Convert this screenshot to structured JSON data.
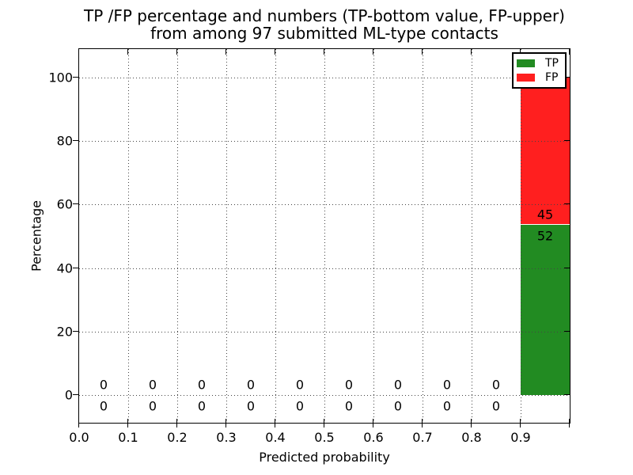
{
  "figure": {
    "title_line1": "TP /FP percentage and numbers (TP-bottom value, FP-upper)",
    "title_line2": "from among 97 submitted ML-type contacts",
    "xlabel": "Predicted probability",
    "ylabel": "Percentage",
    "background_color": "#ffffff"
  },
  "legend": {
    "position": "upper right",
    "items": [
      {
        "label": "TP",
        "color": "#228b22"
      },
      {
        "label": "FP",
        "color": "#ff1f1f"
      }
    ]
  },
  "chart_data": {
    "type": "bar",
    "stacked": true,
    "title": "TP /FP percentage and numbers (TP-bottom value, FP-upper) from among 97 submitted ML-type contacts",
    "xlabel": "Predicted probability",
    "ylabel": "Percentage",
    "total_contacts": 97,
    "bin_width": 0.1,
    "bin_starts": [
      0.0,
      0.1,
      0.2,
      0.3,
      0.4,
      0.5,
      0.6,
      0.7,
      0.8,
      0.9
    ],
    "series": [
      {
        "name": "TP",
        "color": "#228b22",
        "counts": [
          0,
          0,
          0,
          0,
          0,
          0,
          0,
          0,
          0,
          52
        ],
        "percent_of_total_last_bin": 53.6
      },
      {
        "name": "FP",
        "color": "#ff1f1f",
        "counts": [
          0,
          0,
          0,
          0,
          0,
          0,
          0,
          0,
          0,
          45
        ],
        "percent_of_total_last_bin": 46.4
      }
    ],
    "bar_value_labels": {
      "last_bin_tp_bottom": "52",
      "last_bin_fp_upper": "45"
    },
    "x_ticks": [
      "0.0",
      "0.1",
      "0.2",
      "0.3",
      "0.4",
      "0.5",
      "0.6",
      "0.7",
      "0.8",
      "0.9"
    ],
    "x_tick_values": [
      0,
      0.1,
      0.2,
      0.3,
      0.4,
      0.5,
      0.6,
      0.7,
      0.8,
      0.9
    ],
    "y_ticks": [
      "0",
      "20",
      "40",
      "60",
      "80",
      "100"
    ],
    "y_tick_values": [
      0,
      20,
      40,
      60,
      80,
      100
    ],
    "xlim": [
      0.0,
      1.0
    ],
    "ylim": [
      -8.7,
      109.0
    ],
    "grid": "dotted",
    "legend_position": "upper right"
  }
}
